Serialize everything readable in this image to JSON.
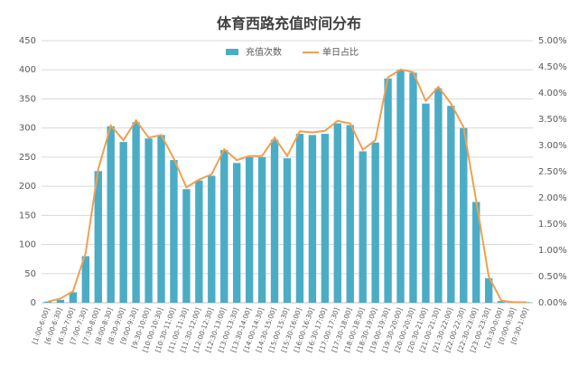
{
  "chart_data": {
    "type": "bar-line",
    "title": "体育西路充值时间分布",
    "categories": [
      "[1:00-6:00]",
      "[6:00-6:30]",
      "[6:30-7:00]",
      "[7:00-7:30]",
      "[7:30-8:00]",
      "[8:00-8:30]",
      "[8:30-9:00]",
      "[9:00-9:30]",
      "[9:30-10:00]",
      "[10:00-10:30]",
      "[10:30-11:00]",
      "[11:00-11:30]",
      "[11:30-12:00]",
      "[12:00-12:30]",
      "[12:30-13:00]",
      "[13:00-13:30]",
      "[13:30-14:00]",
      "[14:00-14:30]",
      "[14:30-15:00]",
      "[15:00-15:30]",
      "[15:30-16:00]",
      "[16:00-16:30]",
      "[16:30-17:00]",
      "[17:00-17:30]",
      "[17:30-18:00]",
      "[18:00-18:30]",
      "[18:30-19:00]",
      "[19:00-19:30]",
      "[19:30-20:00]",
      "[20:00-20:30]",
      "[20:30-21:00]",
      "[21:00-21:30]",
      "[21:30-22:00]",
      "[22:00-22:30]",
      "[22:30-23:00]",
      "[23:00-23:30]",
      "[23:30-0:00]",
      "[0:00-0:30]",
      "[0:30-1:00]"
    ],
    "series": [
      {
        "name": "充值次数",
        "type": "bar",
        "color": "#4bacc6",
        "values": [
          2,
          5,
          18,
          80,
          226,
          303,
          276,
          310,
          282,
          288,
          245,
          195,
          210,
          218,
          262,
          240,
          250,
          250,
          280,
          248,
          290,
          288,
          290,
          308,
          305,
          260,
          275,
          385,
          400,
          395,
          342,
          368,
          338,
          300,
          173,
          42,
          3,
          1,
          1
        ]
      },
      {
        "name": "单日占比",
        "type": "line",
        "axis": "y2",
        "color": "#f0a050",
        "values": [
          0.02,
          0.08,
          0.22,
          0.95,
          2.55,
          3.38,
          3.1,
          3.48,
          3.15,
          3.2,
          2.75,
          2.2,
          2.35,
          2.45,
          2.93,
          2.72,
          2.8,
          2.8,
          3.15,
          2.8,
          3.27,
          3.25,
          3.28,
          3.47,
          3.42,
          2.92,
          3.1,
          4.3,
          4.45,
          4.4,
          3.85,
          4.12,
          3.8,
          3.35,
          1.95,
          0.5,
          0.04,
          0.01,
          0.01
        ]
      }
    ],
    "ylim": [
      0,
      450
    ],
    "yticks": [
      0,
      50,
      100,
      150,
      200,
      250,
      300,
      350,
      400,
      450
    ],
    "y2lim": [
      0,
      5
    ],
    "y2ticks": [
      {
        "value": 0,
        "label": "0.00%"
      },
      {
        "value": 0.5,
        "label": "0.50%"
      },
      {
        "value": 1,
        "label": "1.00%"
      },
      {
        "value": 1.5,
        "label": "1.50%"
      },
      {
        "value": 2,
        "label": "2.00%"
      },
      {
        "value": 2.5,
        "label": "2.50%"
      },
      {
        "value": 3,
        "label": "3.00%"
      },
      {
        "value": 3.5,
        "label": "3.50%"
      },
      {
        "value": 4,
        "label": "4.00%"
      },
      {
        "value": 4.5,
        "label": "4.50%"
      },
      {
        "value": 5,
        "label": "5.00%"
      }
    ],
    "grid": true,
    "legend": "top"
  }
}
